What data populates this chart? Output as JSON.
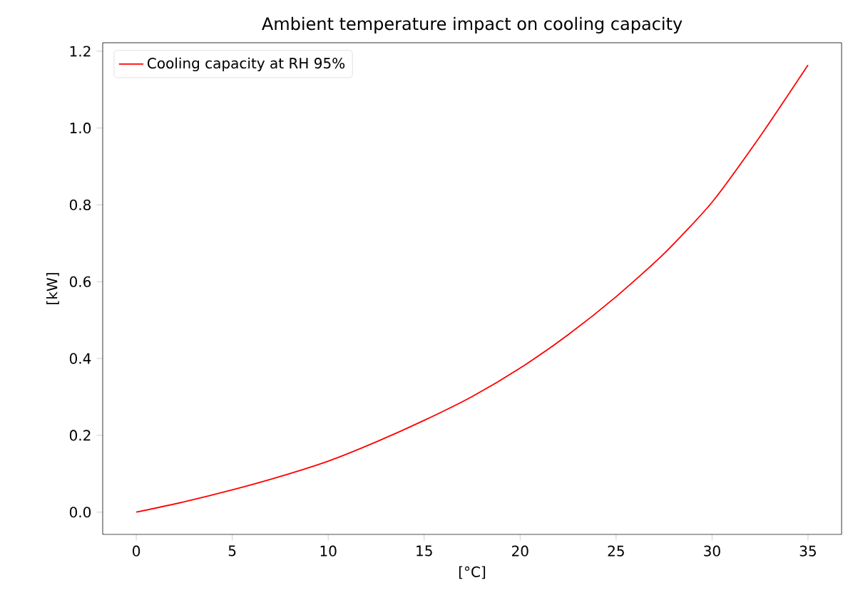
{
  "chart_data": {
    "type": "line",
    "title": "Ambient temperature impact on cooling capacity",
    "xlabel": "[°C]",
    "ylabel": "[kW]",
    "x": [
      0,
      2.5,
      5,
      7.5,
      10,
      12.5,
      15,
      17.5,
      20,
      22.5,
      25,
      27.5,
      30,
      32.5,
      35
    ],
    "series": [
      {
        "name": "Cooling capacity at RH 95%",
        "color": "#ff0000",
        "values": [
          0.0,
          0.027,
          0.058,
          0.093,
          0.133,
          0.183,
          0.239,
          0.301,
          0.375,
          0.462,
          0.561,
          0.673,
          0.807,
          0.978,
          1.164
        ]
      }
    ],
    "xlim": [
      -1.75,
      36.75
    ],
    "ylim": [
      -0.058,
      1.222
    ],
    "xticks": [
      0,
      5,
      10,
      15,
      20,
      25,
      30,
      35
    ],
    "yticks": [
      {
        "value": 0,
        "label": "0.0"
      },
      {
        "value": 0.2,
        "label": "0.2"
      },
      {
        "value": 0.4,
        "label": "0.4"
      },
      {
        "value": 0.6,
        "label": "0.6"
      },
      {
        "value": 0.8,
        "label": "0.8"
      },
      {
        "value": 1.0,
        "label": "1.0"
      },
      {
        "value": 1.2,
        "label": "1.2"
      }
    ],
    "legend": "top left",
    "grid": false,
    "marker": "none",
    "line_style": "solid"
  }
}
